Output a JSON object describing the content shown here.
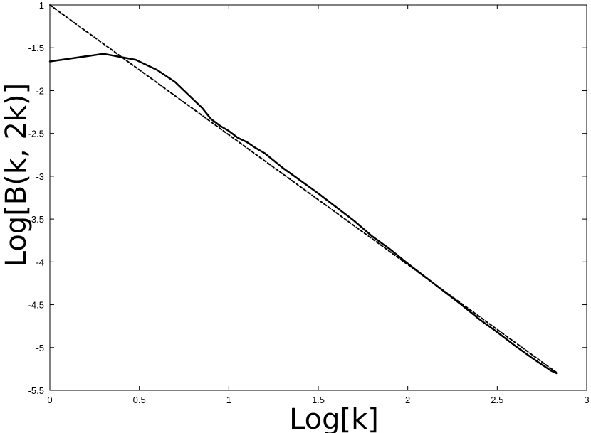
{
  "chart_data": {
    "type": "line",
    "title": "",
    "xlabel": "Log[k]",
    "ylabel": "Log[B(k, 2k)]",
    "xlim": [
      0,
      3
    ],
    "ylim": [
      -5.5,
      -1
    ],
    "xticks": [
      0,
      0.5,
      1,
      1.5,
      2,
      2.5,
      3
    ],
    "xtick_labels": [
      "0",
      "0.5",
      "1",
      "1.5",
      "2",
      "2.5",
      "3"
    ],
    "yticks": [
      -1,
      -1.5,
      -2,
      -2.5,
      -3,
      -3.5,
      -4,
      -4.5,
      -5,
      -5.5
    ],
    "ytick_labels": [
      "-1",
      "-1.5",
      "-2",
      "-2.5",
      "-3",
      "-3.5",
      "-4",
      "-4.5",
      "-5",
      "-5.5"
    ],
    "grid": false,
    "series": [
      {
        "style": "solid",
        "color": "#000000",
        "x": [
          0,
          0.3,
          0.48,
          0.6,
          0.7,
          0.78,
          0.85,
          0.9,
          0.95,
          1.0,
          1.05,
          1.1,
          1.15,
          1.2,
          1.3,
          1.4,
          1.5,
          1.6,
          1.7,
          1.8,
          1.9,
          2.0,
          2.1,
          2.2,
          2.3,
          2.4,
          2.5,
          2.6,
          2.7,
          2.8,
          2.83
        ],
        "y": [
          -1.66,
          -1.57,
          -1.64,
          -1.76,
          -1.9,
          -2.06,
          -2.2,
          -2.33,
          -2.41,
          -2.47,
          -2.55,
          -2.6,
          -2.67,
          -2.73,
          -2.9,
          -3.05,
          -3.2,
          -3.36,
          -3.52,
          -3.7,
          -3.85,
          -4.02,
          -4.18,
          -4.34,
          -4.5,
          -4.67,
          -4.82,
          -4.98,
          -5.13,
          -5.27,
          -5.3
        ]
      },
      {
        "style": "dashed",
        "color": "#000000",
        "x": [
          0,
          2.83
        ],
        "y": [
          -1.0,
          -5.29
        ]
      }
    ]
  },
  "colors": {
    "line": "#000000",
    "background": "#ffffff",
    "axis": "#000000"
  }
}
